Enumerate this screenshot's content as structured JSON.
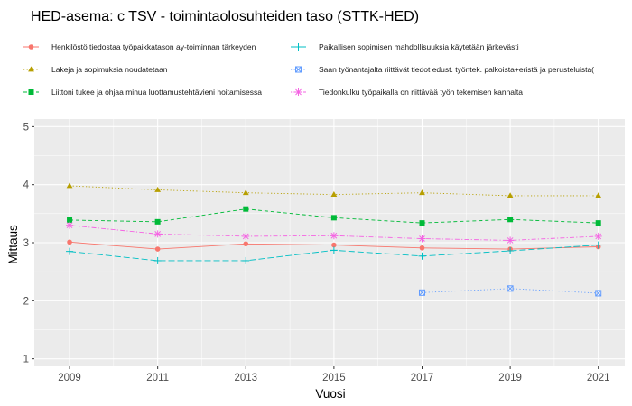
{
  "chart_data": {
    "type": "line",
    "title": "HED-asema: c TSV  - toimintaolosuhteiden taso (STTK-HED)",
    "xlabel": "Vuosi",
    "ylabel": "Mittaus",
    "x": [
      2009,
      2011,
      2013,
      2015,
      2017,
      2019,
      2021
    ],
    "x_ticks": [
      "2009",
      "2011",
      "2013",
      "2015",
      "2017",
      "2019",
      "2021"
    ],
    "y_ticks": [
      "1",
      "2",
      "3",
      "4",
      "5"
    ],
    "xlim": [
      2008.2,
      2021.6
    ],
    "ylim": [
      0.87,
      5.13
    ],
    "grid": true,
    "legend_position": "top",
    "panel_background": "#ebebeb",
    "series": [
      {
        "name": "Henkilöstö tiedostaa työpaikkatason ay-toiminnan tärkeyden",
        "color": "#F8766D",
        "marker": "circle",
        "dash": "solid",
        "values": [
          3.01,
          2.89,
          2.98,
          2.96,
          2.91,
          2.89,
          2.93
        ]
      },
      {
        "name": "Lakeja ja sopimuksia noudatetaan",
        "color": "#B79F00",
        "marker": "triangle",
        "dash": "dotted",
        "values": [
          3.98,
          3.91,
          3.86,
          3.83,
          3.86,
          3.81,
          3.81
        ]
      },
      {
        "name": "Liittoni tukee ja ohjaa minua luottamustehtävieni hoitamisessa",
        "color": "#00BA38",
        "marker": "square",
        "dash": "dashed",
        "values": [
          3.39,
          3.36,
          3.58,
          3.43,
          3.34,
          3.4,
          3.34
        ]
      },
      {
        "name": "Paikallisen sopimisen mahdollisuuksia käytetään järkevästi",
        "color": "#00BFC4",
        "marker": "plus",
        "dash": "longdash",
        "values": [
          2.85,
          2.69,
          2.69,
          2.87,
          2.77,
          2.86,
          2.96
        ]
      },
      {
        "name": "Saan työnantajalta riittävät tiedot edust. työntek. palkoista+eristä ja perusteluista(",
        "color": "#619CFF",
        "marker": "boxx",
        "dash": "dotted",
        "values": [
          null,
          null,
          null,
          null,
          2.14,
          2.21,
          2.13
        ]
      },
      {
        "name": "Tiedonkulku työpaikalla on riittävää työn tekemisen kannalta",
        "color": "#F564E3",
        "marker": "star",
        "dash": "dotdash",
        "values": [
          3.3,
          3.15,
          3.11,
          3.12,
          3.07,
          3.04,
          3.11
        ]
      }
    ]
  }
}
